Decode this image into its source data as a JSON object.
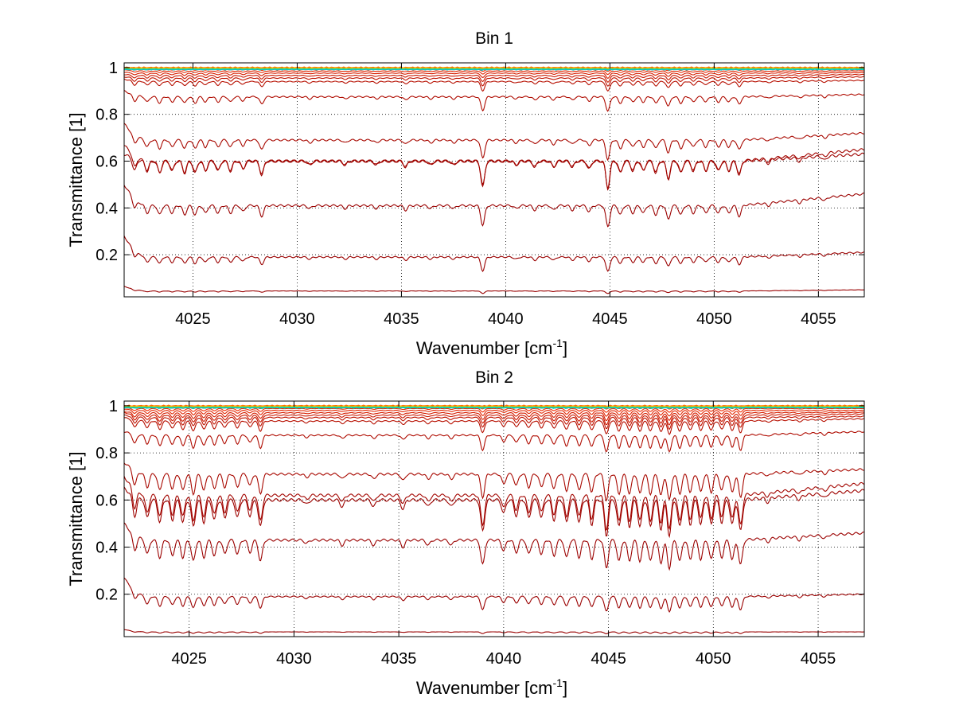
{
  "figure": {
    "background": "#ffffff",
    "line_color_dark": "#990000",
    "line_color_bright": "#ff3300",
    "top_colors": [
      "#ff6600",
      "#ff9900",
      "#ffcc00",
      "#66cc33",
      "#00cccc"
    ]
  },
  "chart_data": [
    {
      "type": "line",
      "title": "Bin 1",
      "xlabel": "Wavenumber [cm",
      "xlabel_sup": "-1",
      "xlabel_close": "]",
      "ylabel": "Transmittance [1]",
      "xlim": [
        4021.7,
        4057.2
      ],
      "ylim": [
        0.02,
        1.02
      ],
      "xticks": [
        4025,
        4030,
        4035,
        4040,
        4045,
        4050,
        4055
      ],
      "xtick_labels": [
        "4025",
        "4030",
        "4035",
        "4040",
        "4045",
        "4050",
        "4055"
      ],
      "yticks": [
        0.2,
        0.4,
        0.6,
        0.8,
        1
      ],
      "ytick_labels": [
        "0.2",
        "0.4",
        "0.6",
        "0.8",
        "1"
      ],
      "grid": true,
      "absorption_lines": [
        {
          "x": 4022.2,
          "depth": 0.06
        },
        {
          "x": 4022.8,
          "depth": 0.05
        },
        {
          "x": 4023.4,
          "depth": 0.06
        },
        {
          "x": 4024.0,
          "depth": 0.05
        },
        {
          "x": 4024.6,
          "depth": 0.06
        },
        {
          "x": 4025.1,
          "depth": 0.06
        },
        {
          "x": 4025.6,
          "depth": 0.05
        },
        {
          "x": 4026.2,
          "depth": 0.05
        },
        {
          "x": 4026.8,
          "depth": 0.05
        },
        {
          "x": 4027.4,
          "depth": 0.04
        },
        {
          "x": 4028.3,
          "depth": 0.07
        },
        {
          "x": 4030.6,
          "depth": 0.02
        },
        {
          "x": 4032.3,
          "depth": 0.02
        },
        {
          "x": 4033.8,
          "depth": 0.02
        },
        {
          "x": 4035.2,
          "depth": 0.03
        },
        {
          "x": 4036.4,
          "depth": 0.02
        },
        {
          "x": 4037.5,
          "depth": 0.02
        },
        {
          "x": 4038.9,
          "depth": 0.13
        },
        {
          "x": 4040.5,
          "depth": 0.02
        },
        {
          "x": 4041.4,
          "depth": 0.03
        },
        {
          "x": 4042.3,
          "depth": 0.03
        },
        {
          "x": 4043.2,
          "depth": 0.03
        },
        {
          "x": 4044.0,
          "depth": 0.04
        },
        {
          "x": 4044.9,
          "depth": 0.14
        },
        {
          "x": 4045.5,
          "depth": 0.06
        },
        {
          "x": 4046.1,
          "depth": 0.05
        },
        {
          "x": 4046.6,
          "depth": 0.05
        },
        {
          "x": 4047.2,
          "depth": 0.06
        },
        {
          "x": 4047.8,
          "depth": 0.09
        },
        {
          "x": 4048.4,
          "depth": 0.06
        },
        {
          "x": 4049.0,
          "depth": 0.05
        },
        {
          "x": 4049.6,
          "depth": 0.05
        },
        {
          "x": 4050.2,
          "depth": 0.05
        },
        {
          "x": 4050.7,
          "depth": 0.05
        },
        {
          "x": 4051.2,
          "depth": 0.07
        },
        {
          "x": 4052.6,
          "depth": 0.02
        },
        {
          "x": 4054.1,
          "depth": 0.02
        },
        {
          "x": 4055.3,
          "depth": 0.02
        }
      ],
      "series": [
        {
          "baseline": 0.045,
          "start": 0.065,
          "end": 0.05,
          "amp": 0.08
        },
        {
          "baseline": 0.19,
          "start": 0.28,
          "end": 0.21,
          "amp": 0.45
        },
        {
          "baseline": 0.41,
          "start": 0.5,
          "end": 0.46,
          "amp": 0.65
        },
        {
          "baseline": 0.6,
          "start": 0.63,
          "end": 0.63,
          "amp": 0.85
        },
        {
          "baseline": 0.6,
          "start": 0.67,
          "end": 0.65,
          "amp": 0.8
        },
        {
          "baseline": 0.69,
          "start": 0.76,
          "end": 0.72,
          "amp": 0.6
        },
        {
          "baseline": 0.875,
          "start": 0.9,
          "end": 0.885,
          "amp": 0.45
        },
        {
          "baseline": 0.94,
          "start": 0.95,
          "end": 0.945,
          "amp": 0.3
        },
        {
          "baseline": 0.955,
          "start": 0.96,
          "end": 0.96,
          "amp": 0.25
        },
        {
          "baseline": 0.966,
          "start": 0.97,
          "end": 0.97,
          "amp": 0.2
        },
        {
          "baseline": 0.976,
          "start": 0.98,
          "end": 0.978,
          "amp": 0.15
        },
        {
          "baseline": 0.985,
          "start": 0.99,
          "end": 0.986,
          "amp": 0.1
        },
        {
          "baseline": 0.992,
          "start": 0.995,
          "end": 0.993,
          "amp": 0.06
        },
        {
          "baseline": 0.996,
          "start": 0.998,
          "end": 0.997,
          "amp": 0.03
        }
      ]
    },
    {
      "type": "line",
      "title": "Bin 2",
      "xlabel": "Wavenumber [cm",
      "xlabel_sup": "-1",
      "xlabel_close": "]",
      "ylabel": "Transmittance [1]",
      "xlim": [
        4021.9,
        4057.2
      ],
      "ylim": [
        0.02,
        1.02
      ],
      "xticks": [
        4025,
        4030,
        4035,
        4040,
        4045,
        4050,
        4055
      ],
      "xtick_labels": [
        "4025",
        "4030",
        "4035",
        "4040",
        "4045",
        "4050",
        "4055"
      ],
      "yticks": [
        0.2,
        0.4,
        0.6,
        0.8,
        1
      ],
      "ytick_labels": [
        "0.2",
        "0.4",
        "0.6",
        "0.8",
        "1"
      ],
      "grid": true,
      "absorption_lines": [
        {
          "x": 4022.4,
          "depth": 0.09
        },
        {
          "x": 4023.0,
          "depth": 0.08
        },
        {
          "x": 4023.6,
          "depth": 0.1
        },
        {
          "x": 4024.2,
          "depth": 0.09
        },
        {
          "x": 4024.7,
          "depth": 0.1
        },
        {
          "x": 4025.2,
          "depth": 0.12
        },
        {
          "x": 4025.7,
          "depth": 0.1
        },
        {
          "x": 4026.2,
          "depth": 0.09
        },
        {
          "x": 4026.7,
          "depth": 0.08
        },
        {
          "x": 4027.3,
          "depth": 0.08
        },
        {
          "x": 4027.9,
          "depth": 0.07
        },
        {
          "x": 4028.4,
          "depth": 0.12
        },
        {
          "x": 4030.6,
          "depth": 0.02
        },
        {
          "x": 4032.3,
          "depth": 0.03
        },
        {
          "x": 4033.8,
          "depth": 0.03
        },
        {
          "x": 4035.2,
          "depth": 0.04
        },
        {
          "x": 4036.4,
          "depth": 0.03
        },
        {
          "x": 4037.5,
          "depth": 0.03
        },
        {
          "x": 4039.0,
          "depth": 0.14
        },
        {
          "x": 4040.0,
          "depth": 0.06
        },
        {
          "x": 4040.6,
          "depth": 0.07
        },
        {
          "x": 4041.2,
          "depth": 0.08
        },
        {
          "x": 4041.8,
          "depth": 0.08
        },
        {
          "x": 4042.4,
          "depth": 0.09
        },
        {
          "x": 4043.0,
          "depth": 0.1
        },
        {
          "x": 4043.6,
          "depth": 0.1
        },
        {
          "x": 4044.2,
          "depth": 0.11
        },
        {
          "x": 4044.9,
          "depth": 0.16
        },
        {
          "x": 4045.5,
          "depth": 0.12
        },
        {
          "x": 4046.0,
          "depth": 0.12
        },
        {
          "x": 4046.5,
          "depth": 0.12
        },
        {
          "x": 4047.0,
          "depth": 0.12
        },
        {
          "x": 4047.5,
          "depth": 0.13
        },
        {
          "x": 4047.9,
          "depth": 0.16
        },
        {
          "x": 4048.4,
          "depth": 0.12
        },
        {
          "x": 4048.9,
          "depth": 0.11
        },
        {
          "x": 4049.4,
          "depth": 0.11
        },
        {
          "x": 4049.9,
          "depth": 0.11
        },
        {
          "x": 4050.4,
          "depth": 0.1
        },
        {
          "x": 4050.9,
          "depth": 0.11
        },
        {
          "x": 4051.3,
          "depth": 0.14
        },
        {
          "x": 4052.6,
          "depth": 0.02
        },
        {
          "x": 4054.1,
          "depth": 0.02
        },
        {
          "x": 4055.3,
          "depth": 0.02
        }
      ],
      "series": [
        {
          "baseline": 0.04,
          "start": 0.05,
          "end": 0.04,
          "amp": 0.05
        },
        {
          "baseline": 0.19,
          "start": 0.27,
          "end": 0.2,
          "amp": 0.4
        },
        {
          "baseline": 0.43,
          "start": 0.5,
          "end": 0.46,
          "amp": 0.75
        },
        {
          "baseline": 0.6,
          "start": 0.65,
          "end": 0.64,
          "amp": 0.95
        },
        {
          "baseline": 0.62,
          "start": 0.7,
          "end": 0.67,
          "amp": 0.9
        },
        {
          "baseline": 0.71,
          "start": 0.76,
          "end": 0.73,
          "amp": 0.7
        },
        {
          "baseline": 0.875,
          "start": 0.89,
          "end": 0.89,
          "amp": 0.45
        },
        {
          "baseline": 0.935,
          "start": 0.95,
          "end": 0.945,
          "amp": 0.35
        },
        {
          "baseline": 0.95,
          "start": 0.96,
          "end": 0.955,
          "amp": 0.3
        },
        {
          "baseline": 0.96,
          "start": 0.97,
          "end": 0.965,
          "amp": 0.25
        },
        {
          "baseline": 0.97,
          "start": 0.975,
          "end": 0.972,
          "amp": 0.2
        },
        {
          "baseline": 0.98,
          "start": 0.985,
          "end": 0.98,
          "amp": 0.15
        },
        {
          "baseline": 0.988,
          "start": 0.99,
          "end": 0.988,
          "amp": 0.1
        },
        {
          "baseline": 0.994,
          "start": 0.996,
          "end": 0.994,
          "amp": 0.05
        }
      ]
    }
  ]
}
